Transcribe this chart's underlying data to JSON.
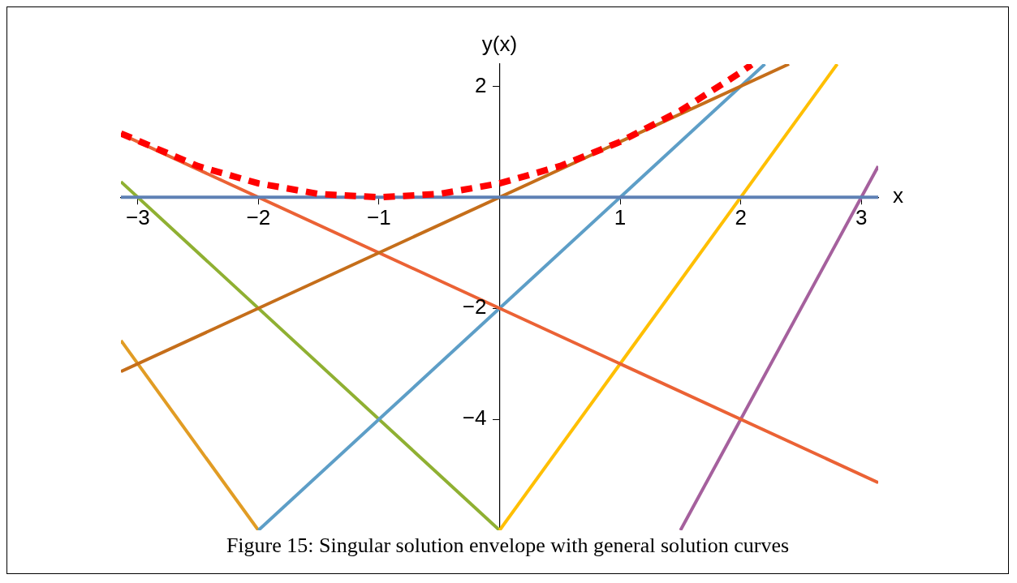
{
  "chart_data": {
    "type": "line",
    "xlabel": "x",
    "ylabel": "y(x)",
    "xlim": [
      -3.14,
      3.14
    ],
    "ylim": [
      -6,
      2.4
    ],
    "xticks": [
      -3,
      -2,
      -1,
      1,
      2,
      3
    ],
    "yticks": [
      -4,
      -2,
      2
    ],
    "grid": false,
    "legend": false,
    "marker": "none",
    "annotations": [
      "Figure 15: Singular solution envelope with general solution curves"
    ],
    "series": [
      {
        "color": "#5e81b5",
        "x": [
          -3.14,
          3.14
        ],
        "values": [
          0,
          0
        ]
      },
      {
        "color": "#c56e1a",
        "x": [
          -3.14,
          2.4
        ],
        "values": [
          -3.14,
          2.4
        ]
      },
      {
        "color": "#eb6235",
        "x": [
          -3.14,
          3.14
        ],
        "values": [
          1.14,
          -5.14
        ]
      },
      {
        "color": "#5d9ec7",
        "x": [
          -2,
          2.2
        ],
        "values": [
          -6,
          2.4
        ]
      },
      {
        "color": "#ffbf00",
        "x": [
          0,
          2.8
        ],
        "values": [
          -6,
          2.4
        ]
      },
      {
        "color": "#a5609d",
        "x": [
          1.5,
          3.14
        ],
        "values": [
          -6,
          0.56
        ]
      },
      {
        "color": "#8fb032",
        "x": [
          -3.14,
          0
        ],
        "values": [
          0.28,
          -6
        ]
      },
      {
        "color": "#e19c24",
        "x": [
          -3.14,
          -2
        ],
        "values": [
          -2.58,
          -6
        ]
      },
      {
        "color": "#ff0000",
        "line_style": "dashed",
        "x": [
          -3.14,
          -2.5,
          -2,
          -1.5,
          -1,
          -0.5,
          0,
          0.5,
          1,
          1.5,
          2,
          2.09
        ],
        "values": [
          1.15,
          0.56,
          0.25,
          0.06,
          0,
          0.06,
          0.25,
          0.56,
          1,
          1.56,
          2.25,
          2.39
        ]
      }
    ]
  }
}
